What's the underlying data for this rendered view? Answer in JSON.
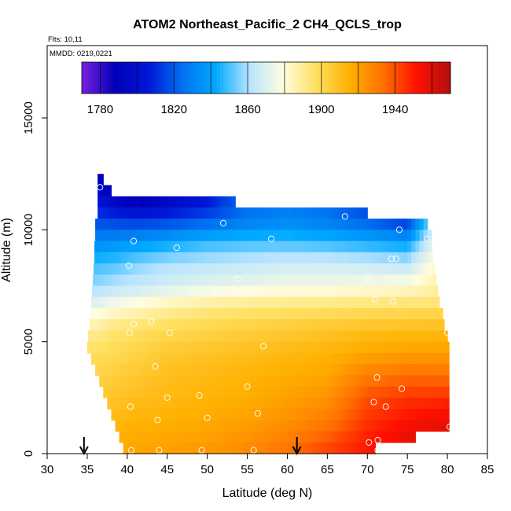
{
  "chart_data": {
    "type": "heatmap",
    "title": "ATOM2 Northeast_Pacific_2 CH4_QCLS_trop",
    "flights_note": "Flts: 10,11",
    "date_note": "MMDD: 0219,0221",
    "xlabel": "Latitude (deg N)",
    "ylabel": "Altitude (m)",
    "xlim": [
      30,
      85
    ],
    "ylim": [
      0,
      17500
    ],
    "xticks": [
      "30",
      "35",
      "40",
      "45",
      "50",
      "55",
      "60",
      "65",
      "70",
      "75",
      "80",
      "85"
    ],
    "yticks": [
      "0",
      "5000",
      "10000",
      "15000"
    ],
    "colorbar": {
      "range": [
        1770,
        1970
      ],
      "tick_labels": [
        "1780",
        "1820",
        "1860",
        "1900",
        "1940"
      ],
      "tick_values": [
        1780,
        1820,
        1860,
        1900,
        1940
      ],
      "minor_ticks": [
        1780,
        1800,
        1820,
        1840,
        1860,
        1880,
        1900,
        1920,
        1940,
        1960
      ],
      "colors": [
        "#7a1fe0",
        "#0000b8",
        "#0018d8",
        "#0070f0",
        "#00aaff",
        "#b8e4ff",
        "#fffde0",
        "#ffe060",
        "#ffb000",
        "#ff7000",
        "#ff1000",
        "#b01010"
      ]
    },
    "profiles": [
      {
        "lat": 36.2,
        "values": [
          [
            500,
            1914
          ],
          [
            1500,
            1910
          ],
          [
            2500,
            1906
          ],
          [
            3500,
            1902
          ],
          [
            4500,
            1898
          ],
          [
            5500,
            1890
          ],
          [
            6500,
            1875
          ],
          [
            7500,
            1858
          ],
          [
            8500,
            1848
          ],
          [
            9500,
            1832
          ],
          [
            10500,
            1815
          ],
          [
            11500,
            1800
          ],
          [
            12000,
            1790
          ]
        ]
      },
      {
        "lat": 38.5,
        "values": [
          [
            500,
            1916
          ],
          [
            1500,
            1912
          ],
          [
            2500,
            1908
          ],
          [
            3500,
            1904
          ],
          [
            4500,
            1900
          ],
          [
            5500,
            1895
          ],
          [
            6500,
            1880
          ],
          [
            7500,
            1862
          ],
          [
            8500,
            1850
          ],
          [
            9500,
            1834
          ],
          [
            10500,
            1812
          ],
          [
            11500,
            1790
          ]
        ]
      },
      {
        "lat": 41.0,
        "values": [
          [
            500,
            1918
          ],
          [
            1500,
            1914
          ],
          [
            2500,
            1910
          ],
          [
            3500,
            1906
          ],
          [
            4500,
            1902
          ],
          [
            5500,
            1897
          ],
          [
            6500,
            1883
          ],
          [
            7500,
            1864
          ],
          [
            8500,
            1855
          ],
          [
            9500,
            1836
          ],
          [
            10500,
            1810
          ],
          [
            11300,
            1785
          ]
        ]
      },
      {
        "lat": 45.0,
        "values": [
          [
            200,
            1920
          ],
          [
            1500,
            1915
          ],
          [
            2500,
            1912
          ],
          [
            3500,
            1910
          ],
          [
            4500,
            1906
          ],
          [
            5500,
            1900
          ],
          [
            6500,
            1888
          ],
          [
            7500,
            1868
          ],
          [
            8500,
            1860
          ],
          [
            9500,
            1840
          ],
          [
            10500,
            1812
          ],
          [
            11300,
            1795
          ]
        ]
      },
      {
        "lat": 50.0,
        "values": [
          [
            200,
            1922
          ],
          [
            1500,
            1917
          ],
          [
            2500,
            1914
          ],
          [
            3500,
            1912
          ],
          [
            4500,
            1908
          ],
          [
            5500,
            1902
          ],
          [
            6500,
            1892
          ],
          [
            7500,
            1872
          ],
          [
            8500,
            1862
          ],
          [
            9500,
            1846
          ],
          [
            10500,
            1818
          ],
          [
            11300,
            1805
          ]
        ]
      },
      {
        "lat": 55.0,
        "values": [
          [
            200,
            1926
          ],
          [
            1500,
            1920
          ],
          [
            2500,
            1916
          ],
          [
            3500,
            1914
          ],
          [
            4500,
            1910
          ],
          [
            5500,
            1904
          ],
          [
            6500,
            1894
          ],
          [
            7500,
            1874
          ],
          [
            8500,
            1864
          ],
          [
            9500,
            1848
          ],
          [
            10500,
            1826
          ]
        ]
      },
      {
        "lat": 60.0,
        "values": [
          [
            200,
            1932
          ],
          [
            1500,
            1924
          ],
          [
            2500,
            1920
          ],
          [
            3500,
            1916
          ],
          [
            4500,
            1912
          ],
          [
            5500,
            1906
          ],
          [
            6500,
            1895
          ],
          [
            7500,
            1876
          ],
          [
            8500,
            1866
          ],
          [
            9500,
            1848
          ],
          [
            10500,
            1830
          ]
        ]
      },
      {
        "lat": 65.0,
        "values": [
          [
            200,
            1942
          ],
          [
            1500,
            1930
          ],
          [
            2500,
            1924
          ],
          [
            3500,
            1918
          ],
          [
            4500,
            1914
          ],
          [
            5500,
            1908
          ],
          [
            6500,
            1896
          ],
          [
            7500,
            1876
          ],
          [
            8500,
            1866
          ],
          [
            9500,
            1846
          ],
          [
            10500,
            1826
          ]
        ]
      },
      {
        "lat": 70.0,
        "values": [
          [
            500,
            1950
          ],
          [
            1500,
            1945
          ],
          [
            2500,
            1940
          ],
          [
            3500,
            1930
          ],
          [
            4500,
            1918
          ],
          [
            5500,
            1910
          ],
          [
            6500,
            1897
          ],
          [
            7500,
            1878
          ],
          [
            8500,
            1865
          ],
          [
            9500,
            1842
          ],
          [
            10500,
            1818
          ]
        ]
      },
      {
        "lat": 75.0,
        "values": [
          [
            500,
            1958
          ],
          [
            1500,
            1952
          ],
          [
            2500,
            1945
          ],
          [
            3500,
            1934
          ],
          [
            4500,
            1920
          ],
          [
            5500,
            1911
          ],
          [
            6500,
            1898
          ],
          [
            7500,
            1880
          ],
          [
            8500,
            1862
          ],
          [
            9500,
            1838
          ],
          [
            10500,
            1808
          ]
        ]
      },
      {
        "lat": 80.0,
        "values": [
          [
            1000,
            1960
          ],
          [
            2000,
            1952
          ],
          [
            3000,
            1940
          ],
          [
            4000,
            1926
          ],
          [
            5000,
            1916
          ],
          [
            6000,
            1906
          ],
          [
            7000,
            1890
          ]
        ]
      }
    ],
    "row_extents": [
      {
        "alt": 12000,
        "lat_min": 36.3,
        "lat_max": 37.0
      },
      {
        "alt": 11500,
        "lat_min": 36.3,
        "lat_max": 38.0
      },
      {
        "alt": 11000,
        "lat_min": 36.3,
        "lat_max": 53.5
      },
      {
        "alt": 10500,
        "lat_min": 36.3,
        "lat_max": 70.0
      },
      {
        "alt": 10000,
        "lat_min": 36.0,
        "lat_max": 77.5
      },
      {
        "alt": 9500,
        "lat_min": 36.0,
        "lat_max": 78.0
      },
      {
        "alt": 9000,
        "lat_min": 35.9,
        "lat_max": 78.0
      },
      {
        "alt": 8500,
        "lat_min": 35.9,
        "lat_max": 78.2
      },
      {
        "alt": 8000,
        "lat_min": 35.8,
        "lat_max": 78.4
      },
      {
        "alt": 7500,
        "lat_min": 35.7,
        "lat_max": 78.6
      },
      {
        "alt": 7000,
        "lat_min": 35.6,
        "lat_max": 78.8
      },
      {
        "alt": 6500,
        "lat_min": 35.5,
        "lat_max": 79.0
      },
      {
        "alt": 6000,
        "lat_min": 35.4,
        "lat_max": 79.4
      },
      {
        "alt": 5500,
        "lat_min": 35.3,
        "lat_max": 79.6
      },
      {
        "alt": 5000,
        "lat_min": 35.1,
        "lat_max": 80.0
      },
      {
        "alt": 4500,
        "lat_min": 35.0,
        "lat_max": 80.2
      },
      {
        "alt": 4000,
        "lat_min": 35.5,
        "lat_max": 80.2
      },
      {
        "alt": 3500,
        "lat_min": 36.0,
        "lat_max": 80.2
      },
      {
        "alt": 3000,
        "lat_min": 36.5,
        "lat_max": 80.2
      },
      {
        "alt": 2500,
        "lat_min": 37.0,
        "lat_max": 80.2
      },
      {
        "alt": 2000,
        "lat_min": 37.5,
        "lat_max": 80.2
      },
      {
        "alt": 1500,
        "lat_min": 38.0,
        "lat_max": 80.2
      },
      {
        "alt": 1000,
        "lat_min": 38.5,
        "lat_max": 80.2
      },
      {
        "alt": 500,
        "lat_min": 39.0,
        "lat_max": 76.0
      },
      {
        "alt": 0,
        "lat_min": 39.5,
        "lat_max": 71.0
      }
    ],
    "samples": [
      {
        "lat": 36.6,
        "alt": 11900
      },
      {
        "lat": 40.2,
        "alt": 8400
      },
      {
        "lat": 40.8,
        "alt": 9500
      },
      {
        "lat": 46.2,
        "alt": 9200
      },
      {
        "lat": 52.0,
        "alt": 10300
      },
      {
        "lat": 58.0,
        "alt": 9600
      },
      {
        "lat": 67.2,
        "alt": 10600
      },
      {
        "lat": 74.0,
        "alt": 10000
      },
      {
        "lat": 77.5,
        "alt": 9600
      },
      {
        "lat": 73.0,
        "alt": 8700
      },
      {
        "lat": 73.6,
        "alt": 8700
      },
      {
        "lat": 53.8,
        "alt": 7800
      },
      {
        "lat": 48.0,
        "alt": 7200
      },
      {
        "lat": 51.0,
        "alt": 7200
      },
      {
        "lat": 70.0,
        "alt": 7800
      },
      {
        "lat": 71.0,
        "alt": 6900
      },
      {
        "lat": 73.2,
        "alt": 6800
      },
      {
        "lat": 40.8,
        "alt": 5800
      },
      {
        "lat": 43.0,
        "alt": 5900
      },
      {
        "lat": 40.3,
        "alt": 5400
      },
      {
        "lat": 45.3,
        "alt": 5400
      },
      {
        "lat": 57.0,
        "alt": 4800
      },
      {
        "lat": 80.0,
        "alt": 5400
      },
      {
        "lat": 43.5,
        "alt": 3900
      },
      {
        "lat": 71.2,
        "alt": 3400
      },
      {
        "lat": 45.0,
        "alt": 2500
      },
      {
        "lat": 49.0,
        "alt": 2600
      },
      {
        "lat": 55.0,
        "alt": 3000
      },
      {
        "lat": 74.3,
        "alt": 2900
      },
      {
        "lat": 40.4,
        "alt": 2100
      },
      {
        "lat": 70.8,
        "alt": 2300
      },
      {
        "lat": 72.3,
        "alt": 2100
      },
      {
        "lat": 43.8,
        "alt": 1500
      },
      {
        "lat": 50.0,
        "alt": 1600
      },
      {
        "lat": 56.3,
        "alt": 1800
      },
      {
        "lat": 80.3,
        "alt": 1200
      },
      {
        "lat": 70.2,
        "alt": 500
      },
      {
        "lat": 71.3,
        "alt": 600
      },
      {
        "lat": 40.5,
        "alt": 150
      },
      {
        "lat": 44.0,
        "alt": 150
      },
      {
        "lat": 49.3,
        "alt": 150
      },
      {
        "lat": 55.8,
        "alt": 150
      },
      {
        "lat": 71.3,
        "alt": 150
      }
    ],
    "flight_arrows": [
      {
        "lat": 34.6
      },
      {
        "lat": 61.2
      }
    ]
  }
}
